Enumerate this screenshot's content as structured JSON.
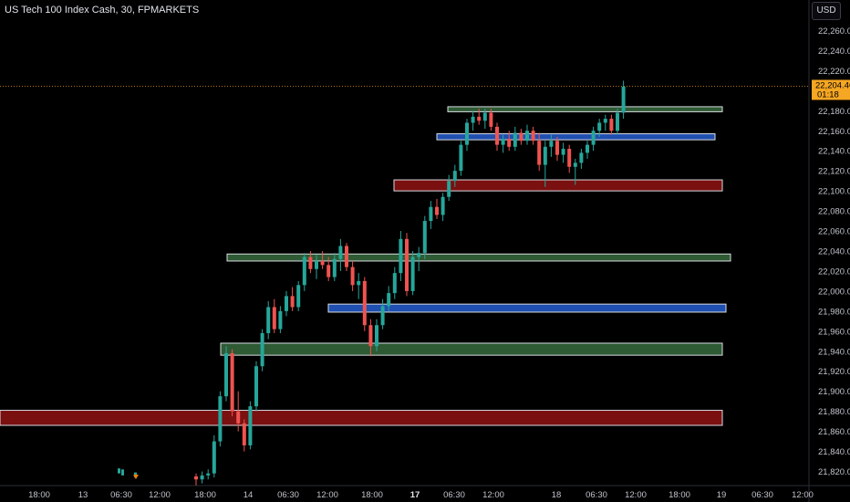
{
  "header": {
    "title": "US Tech 100 Index Cash, 30, FPMARKETS",
    "currency_button": "USD"
  },
  "price_tag": {
    "price": "22,204.46",
    "countdown": "01:18",
    "color": "#f5a623"
  },
  "colors": {
    "up": "#26a69a",
    "down": "#ef5350",
    "zone_green": "#2e5a34",
    "zone_blue": "#1f4fb0",
    "zone_red": "#7a1010",
    "background": "#000000"
  },
  "chart_data": {
    "type": "candlestick",
    "instrument": "US Tech 100 Index Cash",
    "timeframe": "30",
    "source": "FPMARKETS",
    "ylim": [
      21810,
      22280
    ],
    "y_ticks": [
      21820,
      21840,
      21860,
      21880,
      21900,
      21920,
      21940,
      21960,
      21980,
      22000,
      22020,
      22040,
      22060,
      22080,
      22100,
      22120,
      22140,
      22160,
      22180,
      22200,
      22220,
      22240,
      22260
    ],
    "y_tick_labels": [
      "21,820.00",
      "21,840.00",
      "21,860.00",
      "21,880.00",
      "21,900.00",
      "21,920.00",
      "21,940.00",
      "21,960.00",
      "21,980.00",
      "22,000.00",
      "22,020.00",
      "22,040.00",
      "22,060.00",
      "22,080.00",
      "22,100.00",
      "22,120.00",
      "22,140.00",
      "22,160.00",
      "22,180.00",
      "22,200.00",
      "22,220.00",
      "22,240.00",
      "22,260.00"
    ],
    "x_tick_labels": [
      {
        "label": "18:00",
        "bold": false
      },
      {
        "label": "13",
        "bold": false
      },
      {
        "label": "06:30",
        "bold": false
      },
      {
        "label": "12:00",
        "bold": false
      },
      {
        "label": "18:00",
        "bold": false
      },
      {
        "label": "14",
        "bold": false
      },
      {
        "label": "06:30",
        "bold": false
      },
      {
        "label": "12:00",
        "bold": false
      },
      {
        "label": "18:00",
        "bold": false
      },
      {
        "label": "17",
        "bold": true
      },
      {
        "label": "06:30",
        "bold": false
      },
      {
        "label": "12:00",
        "bold": false
      },
      {
        "label": "18",
        "bold": false
      },
      {
        "label": "06:30",
        "bold": false
      },
      {
        "label": "12:00",
        "bold": false
      },
      {
        "label": "18:00",
        "bold": false
      },
      {
        "label": "19",
        "bold": false
      },
      {
        "label": "06:30",
        "bold": false
      },
      {
        "label": "12:00",
        "bold": false
      }
    ],
    "zones": [
      {
        "name": "supply-zone-top",
        "color": "green",
        "y_top": 22184,
        "y_bottom": 22179
      },
      {
        "name": "blue-zone-upper",
        "color": "blue",
        "y_top": 22157,
        "y_bottom": 22151
      },
      {
        "name": "red-zone-upper",
        "color": "red",
        "y_top": 22111,
        "y_bottom": 22100
      },
      {
        "name": "green-zone-middle",
        "color": "green",
        "y_top": 22037,
        "y_bottom": 22030
      },
      {
        "name": "blue-zone-lower",
        "color": "blue",
        "y_top": 21987,
        "y_bottom": 21979
      },
      {
        "name": "green-zone-lower",
        "color": "green",
        "y_top": 21948,
        "y_bottom": 21936
      },
      {
        "name": "red-zone-lower",
        "color": "red",
        "y_top": 21881,
        "y_bottom": 21866
      }
    ],
    "current_price": 22204.46,
    "candles_ohlc": [
      [
        21815,
        21818,
        21806,
        21812
      ],
      [
        21812,
        21820,
        21808,
        21816
      ],
      [
        21816,
        21822,
        21812,
        21818
      ],
      [
        21818,
        21856,
        21814,
        21850
      ],
      [
        21850,
        21900,
        21845,
        21895
      ],
      [
        21895,
        21945,
        21890,
        21938
      ],
      [
        21938,
        21942,
        21875,
        21880
      ],
      [
        21880,
        21900,
        21860,
        21868
      ],
      [
        21868,
        21872,
        21840,
        21846
      ],
      [
        21846,
        21890,
        21842,
        21885
      ],
      [
        21885,
        21930,
        21880,
        21925
      ],
      [
        21925,
        21962,
        21920,
        21958
      ],
      [
        21958,
        21990,
        21952,
        21984
      ],
      [
        21984,
        21992,
        21958,
        21962
      ],
      [
        21962,
        21985,
        21958,
        21980
      ],
      [
        21980,
        22000,
        21975,
        21995
      ],
      [
        21995,
        22004,
        21980,
        21984
      ],
      [
        21984,
        22010,
        21980,
        22006
      ],
      [
        22006,
        22038,
        22000,
        22034
      ],
      [
        22034,
        22040,
        22018,
        22022
      ],
      [
        22022,
        22036,
        22012,
        22030
      ],
      [
        22030,
        22040,
        22022,
        22026
      ],
      [
        22026,
        22034,
        22010,
        22014
      ],
      [
        22014,
        22038,
        22010,
        22032
      ],
      [
        22032,
        22052,
        22020,
        22045
      ],
      [
        22045,
        22048,
        22020,
        22024
      ],
      [
        22024,
        22030,
        22000,
        22006
      ],
      [
        22006,
        22018,
        21992,
        22010
      ],
      [
        22010,
        22014,
        21960,
        21966
      ],
      [
        21966,
        21972,
        21935,
        21945
      ],
      [
        21945,
        21972,
        21940,
        21966
      ],
      [
        21966,
        21992,
        21962,
        21985
      ],
      [
        21985,
        22005,
        21980,
        21998
      ],
      [
        21998,
        22024,
        21992,
        22018
      ],
      [
        22018,
        22060,
        22010,
        22052
      ],
      [
        22052,
        22058,
        21995,
        22000
      ],
      [
        22000,
        22040,
        21996,
        22034
      ],
      [
        22034,
        22044,
        22020,
        22038
      ],
      [
        22038,
        22075,
        22032,
        22070
      ],
      [
        22070,
        22090,
        22062,
        22084
      ],
      [
        22084,
        22092,
        22072,
        22076
      ],
      [
        22076,
        22098,
        22070,
        22094
      ],
      [
        22094,
        22116,
        22090,
        22110
      ],
      [
        22110,
        22126,
        22104,
        22120
      ],
      [
        22120,
        22150,
        22115,
        22146
      ],
      [
        22146,
        22172,
        22140,
        22168
      ],
      [
        22168,
        22180,
        22160,
        22174
      ],
      [
        22174,
        22182,
        22166,
        22170
      ],
      [
        22170,
        22182,
        22162,
        22178
      ],
      [
        22178,
        22182,
        22160,
        22164
      ],
      [
        22164,
        22168,
        22140,
        22146
      ],
      [
        22146,
        22156,
        22138,
        22152
      ],
      [
        22152,
        22160,
        22140,
        22144
      ],
      [
        22144,
        22164,
        22140,
        22158
      ],
      [
        22158,
        22162,
        22146,
        22150
      ],
      [
        22150,
        22166,
        22146,
        22160
      ],
      [
        22160,
        22164,
        22146,
        22150
      ],
      [
        22150,
        22158,
        22120,
        22126
      ],
      [
        22126,
        22150,
        22104,
        22144
      ],
      [
        22144,
        22156,
        22134,
        22150
      ],
      [
        22150,
        22154,
        22130,
        22136
      ],
      [
        22136,
        22148,
        22128,
        22142
      ],
      [
        22142,
        22146,
        22118,
        22124
      ],
      [
        22124,
        22132,
        22106,
        22128
      ],
      [
        22128,
        22142,
        22122,
        22138
      ],
      [
        22138,
        22150,
        22132,
        22146
      ],
      [
        22146,
        22164,
        22140,
        22160
      ],
      [
        22160,
        22172,
        22154,
        22168
      ],
      [
        22168,
        22176,
        22160,
        22172
      ],
      [
        22172,
        22176,
        22156,
        22160
      ],
      [
        22160,
        22182,
        22156,
        22178
      ],
      [
        22178,
        22210,
        22172,
        22204
      ]
    ]
  }
}
